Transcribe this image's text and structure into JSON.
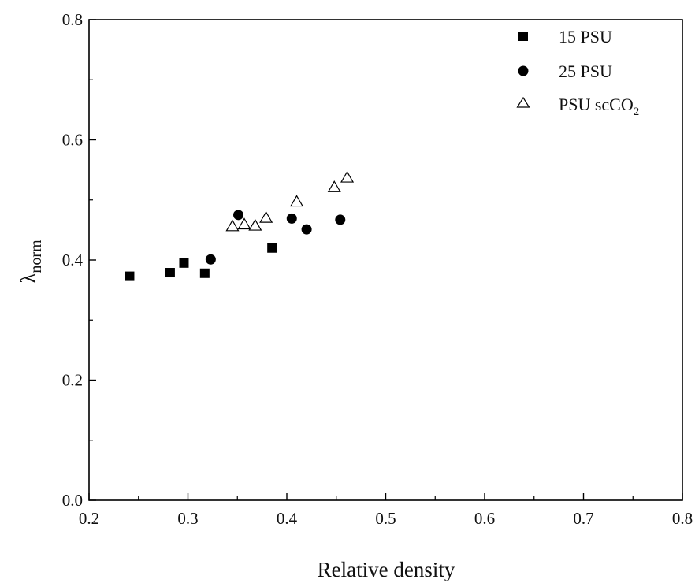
{
  "chart_data": {
    "type": "scatter",
    "xlabel": "Relative density",
    "ylabel": {
      "main": "λ",
      "sub": "norm"
    },
    "xlim": [
      0.2,
      0.8
    ],
    "ylim": [
      0.0,
      0.8
    ],
    "xticks": [
      "0.2",
      "0.3",
      "0.4",
      "0.5",
      "0.6",
      "0.7",
      "0.8"
    ],
    "yticks": [
      "0.0",
      "0.2",
      "0.4",
      "0.6",
      "0.8"
    ],
    "grid": false,
    "legend_position": "top-right",
    "series": [
      {
        "name": "15 PSU",
        "marker": "square-filled",
        "points": [
          [
            0.241,
            0.373
          ],
          [
            0.282,
            0.379
          ],
          [
            0.296,
            0.395
          ],
          [
            0.317,
            0.378
          ],
          [
            0.385,
            0.42
          ]
        ]
      },
      {
        "name": "25 PSU",
        "marker": "circle-filled",
        "points": [
          [
            0.323,
            0.401
          ],
          [
            0.351,
            0.475
          ],
          [
            0.405,
            0.469
          ],
          [
            0.42,
            0.451
          ],
          [
            0.454,
            0.467
          ]
        ]
      },
      {
        "name": "PSU scCO₂",
        "name_parts": {
          "main": "PSU scCO",
          "sub": "2"
        },
        "marker": "triangle-open",
        "points": [
          [
            0.345,
            0.456
          ],
          [
            0.357,
            0.459
          ],
          [
            0.368,
            0.457
          ],
          [
            0.379,
            0.47
          ],
          [
            0.41,
            0.497
          ],
          [
            0.448,
            0.521
          ],
          [
            0.461,
            0.537
          ]
        ]
      }
    ]
  }
}
